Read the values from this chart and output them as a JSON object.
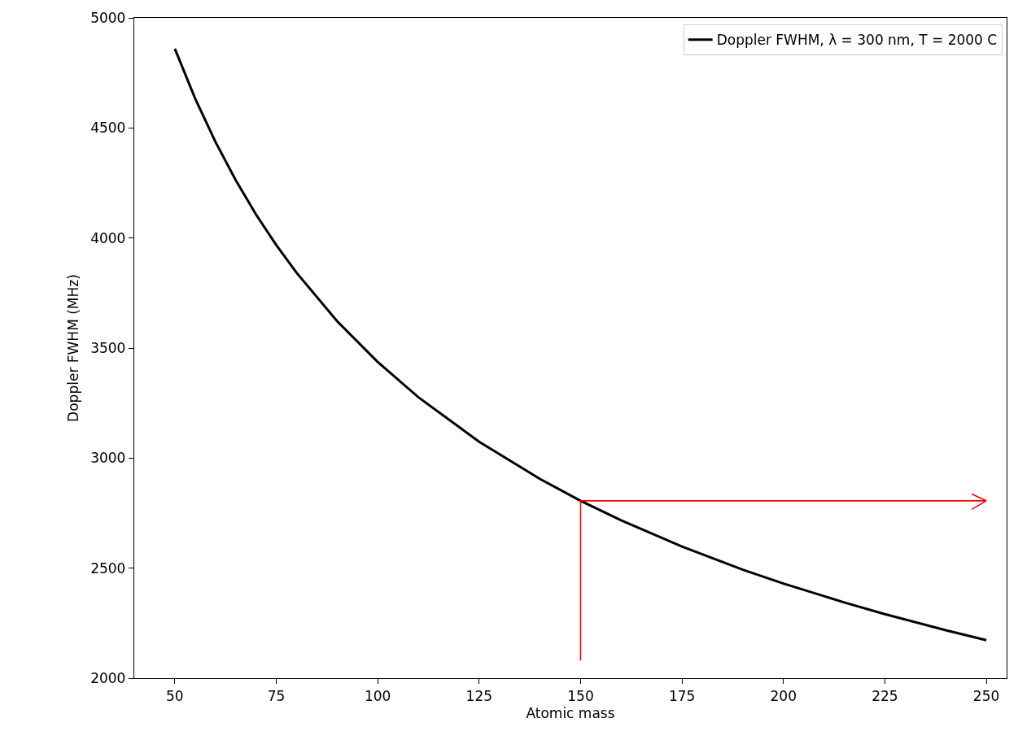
{
  "chart_data": {
    "type": "line",
    "xlabel": "Atomic mass",
    "ylabel": "Doppler FWHM (MHz)",
    "xlim": [
      40,
      255
    ],
    "xticks": [
      50,
      75,
      100,
      125,
      150,
      175,
      200,
      225,
      250
    ],
    "ylim": [
      2000,
      5000
    ],
    "yticks": [
      2000,
      2500,
      3000,
      3500,
      4000,
      4500,
      5000
    ],
    "legend": "top right",
    "line_style": "solid",
    "series": [
      {
        "name": "Doppler FWHM, λ = 300 nm, T = 2000 C",
        "color": "#000000",
        "x": [
          50,
          55,
          60,
          65,
          70,
          75,
          80,
          90,
          100,
          110,
          125,
          140,
          150,
          160,
          175,
          190,
          200,
          215,
          225,
          240,
          250
        ],
        "values": [
          4860,
          4634,
          4437,
          4263,
          4107,
          3968,
          3842,
          3622,
          3437,
          3277,
          3074,
          2905,
          2806,
          2717,
          2598,
          2493,
          2430,
          2344,
          2291,
          2218,
          2173
        ]
      },
      {
        "type": "line",
        "color": "#ff0000",
        "x": [
          150,
          150,
          250,
          246.4,
          250,
          246.4
        ],
        "values": [
          2080,
          2806,
          2806,
          2837,
          2806,
          2767
        ]
      }
    ]
  }
}
